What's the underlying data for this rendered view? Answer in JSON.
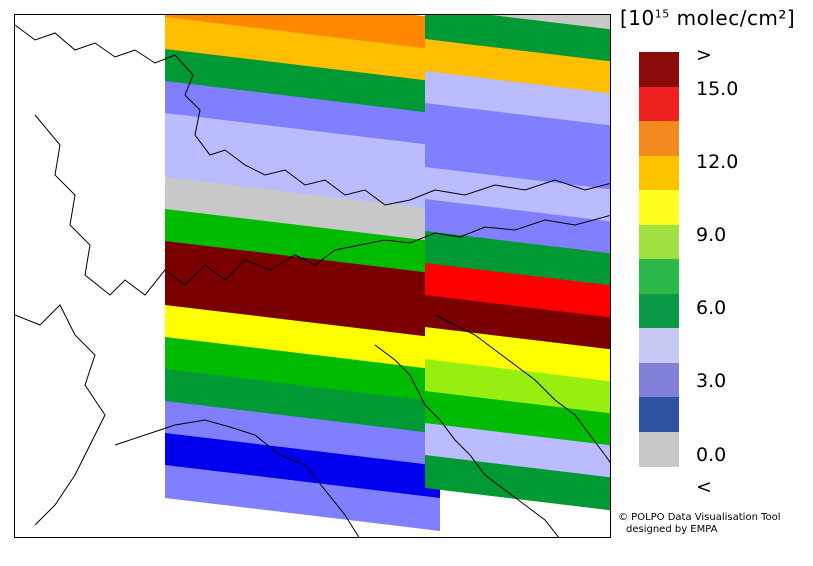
{
  "legend": {
    "unit_pre": "[10",
    "unit_exp": "15",
    "unit_post": " molec/cm²]",
    "colors": [
      "#8b0a0a",
      "#ee2020",
      "#f28a1e",
      "#ffc400",
      "#ffff20",
      "#a0e040",
      "#2db84a",
      "#0c9a48",
      "#c8c8f4",
      "#8080d8",
      "#3050a0",
      "#c8c8c8"
    ],
    "ticks": [
      ">",
      "15.0",
      "12.0",
      "9.0",
      "6.0",
      "3.0",
      "0.0",
      "<"
    ]
  },
  "credit": {
    "line1": "© POLPO Data Visualisation Tool",
    "line2": "designed by EMPA"
  },
  "map": {
    "palette": {
      "darkred": "#7a0000",
      "red": "#ff0000",
      "orange": "#ff8800",
      "amber": "#ffbf00",
      "yellow": "#ffff00",
      "lime": "#99ee11",
      "green": "#00bb00",
      "dgreen": "#009933",
      "lav": "#bbbbff",
      "periw": "#8080ff",
      "blue": "#0000ee",
      "gray": "#c8c8c8"
    }
  }
}
